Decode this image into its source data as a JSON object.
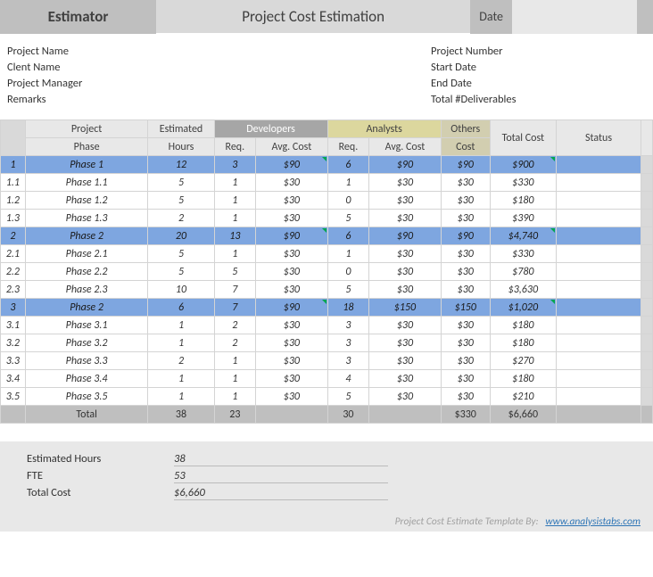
{
  "header": {
    "estimator_label": "Estimator",
    "title": "Project Cost Estimation",
    "date_label": "Date",
    "date_value": ""
  },
  "info": {
    "left": [
      {
        "label": "Project Name",
        "value": ""
      },
      {
        "label": "Clent Name",
        "value": ""
      },
      {
        "label": "Project Manager",
        "value": ""
      },
      {
        "label": "Remarks",
        "value": ""
      }
    ],
    "right": [
      {
        "label": "Project Number",
        "value": ""
      },
      {
        "label": "Start Date",
        "value": ""
      },
      {
        "label": "End Date",
        "value": ""
      },
      {
        "label": "Total #Deliverables",
        "value": ""
      }
    ]
  },
  "table": {
    "headers": {
      "project": "Project",
      "phase": "Phase",
      "estimated": "Estimated",
      "hours": "Hours",
      "developers": "Developers",
      "analysts": "Analysts",
      "req": "Req.",
      "avg_cost": "Avg. Cost",
      "others": "Others",
      "cost": "Cost",
      "total_cost": "Total Cost",
      "status": "Status"
    },
    "rows": [
      {
        "type": "phase",
        "idx": "1",
        "phase": "Phase 1",
        "hours": "12",
        "dev_req": "3",
        "dev_avg": "$90",
        "ana_req": "6",
        "ana_avg": "$90",
        "others": "$90",
        "total": "$900",
        "status": "",
        "tri": true
      },
      {
        "type": "sub",
        "idx": "1.1",
        "phase": "Phase 1.1",
        "hours": "5",
        "dev_req": "1",
        "dev_avg": "$30",
        "ana_req": "1",
        "ana_avg": "$30",
        "others": "$30",
        "total": "$330",
        "status": ""
      },
      {
        "type": "sub",
        "idx": "1.2",
        "phase": "Phase 1.2",
        "hours": "5",
        "dev_req": "1",
        "dev_avg": "$30",
        "ana_req": "0",
        "ana_avg": "$30",
        "others": "$30",
        "total": "$180",
        "status": ""
      },
      {
        "type": "sub",
        "idx": "1.3",
        "phase": "Phase 1.3",
        "hours": "2",
        "dev_req": "1",
        "dev_avg": "$30",
        "ana_req": "5",
        "ana_avg": "$30",
        "others": "$30",
        "total": "$390",
        "status": ""
      },
      {
        "type": "phase",
        "idx": "2",
        "phase": "Phase 2",
        "hours": "20",
        "dev_req": "13",
        "dev_avg": "$90",
        "ana_req": "6",
        "ana_avg": "$90",
        "others": "$90",
        "total": "$4,740",
        "status": "",
        "tri": true
      },
      {
        "type": "sub",
        "idx": "2.1",
        "phase": "Phase 2.1",
        "hours": "5",
        "dev_req": "1",
        "dev_avg": "$30",
        "ana_req": "1",
        "ana_avg": "$30",
        "others": "$30",
        "total": "$330",
        "status": ""
      },
      {
        "type": "sub",
        "idx": "2.2",
        "phase": "Phase 2.2",
        "hours": "5",
        "dev_req": "5",
        "dev_avg": "$30",
        "ana_req": "0",
        "ana_avg": "$30",
        "others": "$30",
        "total": "$780",
        "status": ""
      },
      {
        "type": "sub",
        "idx": "2.3",
        "phase": "Phase 2.3",
        "hours": "10",
        "dev_req": "7",
        "dev_avg": "$30",
        "ana_req": "5",
        "ana_avg": "$30",
        "others": "$30",
        "total": "$3,630",
        "status": ""
      },
      {
        "type": "phase",
        "idx": "3",
        "phase": "Phase 2",
        "hours": "6",
        "dev_req": "7",
        "dev_avg": "$90",
        "ana_req": "18",
        "ana_avg": "$150",
        "others": "$150",
        "total": "$1,020",
        "status": "",
        "tri": true
      },
      {
        "type": "sub",
        "idx": "3.1",
        "phase": "Phase 3.1",
        "hours": "1",
        "dev_req": "2",
        "dev_avg": "$30",
        "ana_req": "3",
        "ana_avg": "$30",
        "others": "$30",
        "total": "$180",
        "status": ""
      },
      {
        "type": "sub",
        "idx": "3.2",
        "phase": "Phase 3.2",
        "hours": "1",
        "dev_req": "2",
        "dev_avg": "$30",
        "ana_req": "3",
        "ana_avg": "$30",
        "others": "$30",
        "total": "$180",
        "status": ""
      },
      {
        "type": "sub",
        "idx": "3.3",
        "phase": "Phase 3.3",
        "hours": "2",
        "dev_req": "1",
        "dev_avg": "$30",
        "ana_req": "3",
        "ana_avg": "$30",
        "others": "$30",
        "total": "$270",
        "status": ""
      },
      {
        "type": "sub",
        "idx": "3.4",
        "phase": "Phase 3.4",
        "hours": "1",
        "dev_req": "1",
        "dev_avg": "$30",
        "ana_req": "4",
        "ana_avg": "$30",
        "others": "$30",
        "total": "$180",
        "status": ""
      },
      {
        "type": "sub",
        "idx": "3.5",
        "phase": "Phase 3.5",
        "hours": "1",
        "dev_req": "1",
        "dev_avg": "$30",
        "ana_req": "5",
        "ana_avg": "$30",
        "others": "$30",
        "total": "$210",
        "status": ""
      }
    ],
    "total_row": {
      "label": "Total",
      "hours": "38",
      "dev_req": "23",
      "dev_avg": "",
      "ana_req": "30",
      "ana_avg": "",
      "others": "$330",
      "total": "$6,660",
      "status": ""
    }
  },
  "summary": {
    "rows": [
      {
        "label": "Estimated Hours",
        "value": "38"
      },
      {
        "label": "FTE",
        "value": "53"
      },
      {
        "label": "Total Cost",
        "value": "$6,660"
      }
    ]
  },
  "footer": {
    "text": "Project Cost Estimate Template By:",
    "link_text": "www.analysistabs.com"
  },
  "colors": {
    "header_bg": "#d9d9d9",
    "header_dark": "#bfbfbf",
    "phase_row": "#7ea6e0",
    "dev_header": "#a6a6a6",
    "ana_header": "#dcd79e",
    "total_row": "#bfbfbf",
    "summary_bg": "#e8e8e8",
    "border": "#d4d4d4"
  }
}
